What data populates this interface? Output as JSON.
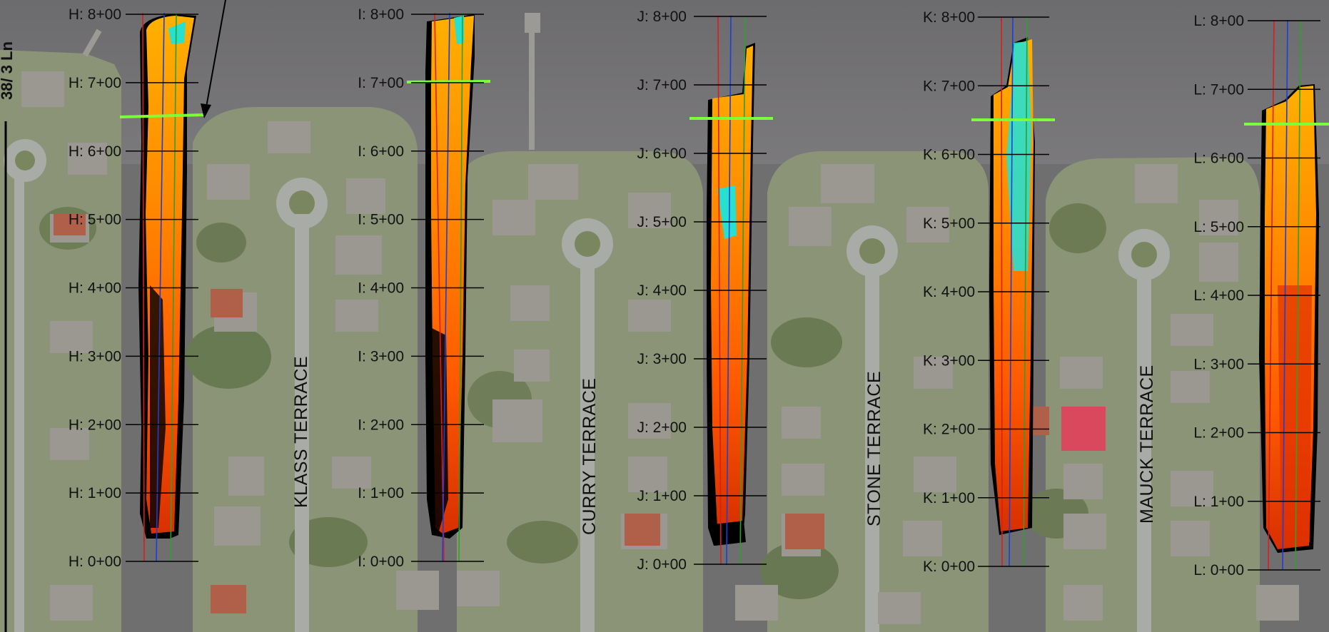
{
  "corner_label": "38/ 3 Ln",
  "streets": [
    {
      "id": "klass",
      "label": "KLASS TERRACE"
    },
    {
      "id": "curry",
      "label": "CURRY TERRACE"
    },
    {
      "id": "stone",
      "label": "STONE TERRACE"
    },
    {
      "id": "mauck",
      "label": "MAUCK TERRACE"
    }
  ],
  "transects": [
    {
      "id": "H",
      "stations": [
        "H: 8+00",
        "H: 7+00",
        "H: 6+00",
        "H: 5+00",
        "H: 4+00",
        "H: 3+00",
        "H: 2+00",
        "H: 1+00",
        "H: 0+00"
      ]
    },
    {
      "id": "I",
      "stations": [
        "I: 8+00",
        "I: 7+00",
        "I: 6+00",
        "I: 5+00",
        "I: 4+00",
        "I: 3+00",
        "I: 2+00",
        "I: 1+00",
        "I: 0+00"
      ]
    },
    {
      "id": "J",
      "stations": [
        "J: 8+00",
        "J: 7+00",
        "J: 6+00",
        "J: 5+00",
        "J: 4+00",
        "J: 3+00",
        "J: 2+00",
        "J: 1+00",
        "J: 0+00"
      ]
    },
    {
      "id": "K",
      "stations": [
        "K: 8+00",
        "K: 7+00",
        "K: 6+00",
        "K: 5+00",
        "K: 4+00",
        "K: 3+00",
        "K: 2+00",
        "K: 1+00",
        "K: 0+00"
      ]
    },
    {
      "id": "L",
      "stations": [
        "L: 8+00",
        "L: 7+00",
        "L: 6+00",
        "L: 5+00",
        "L: 4+00",
        "L: 3+00",
        "L: 2+00",
        "L: 1+00",
        "L: 0+00"
      ]
    }
  ],
  "colors": {
    "water": "#6f6f70",
    "land": "#8a9275",
    "red_line": "#d81e1e",
    "blue_line": "#1c3fd8",
    "green_line": "#2ea02e",
    "shoreline_marker": "#7dff3a",
    "survey_orange": "#ff7a00",
    "survey_yellow": "#ffb000",
    "survey_red": "#e03000",
    "survey_cyan": "#28e0d0",
    "survey_black": "#000000"
  }
}
